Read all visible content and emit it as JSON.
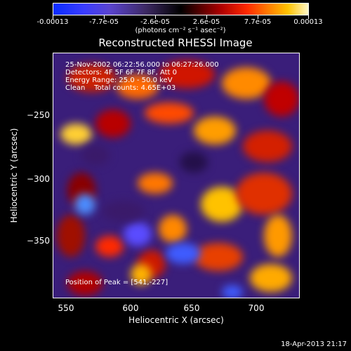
{
  "colorbar": {
    "ticks": [
      "-0.00013",
      "-7.7e-05",
      "-2.6e-05",
      "2.6e-05",
      "7.7e-05",
      "0.00013"
    ],
    "units": "(photons cm⁻² s⁻¹ asec⁻²)"
  },
  "chart_data": {
    "type": "heatmap",
    "title": "Reconstructed RHESSI Image",
    "xlabel": "Heliocentric X (arcsec)",
    "ylabel": "Heliocentric Y (arcsec)",
    "xlim": [
      545,
      735
    ],
    "ylim": [
      -395,
      -205
    ],
    "x_ticks": [
      "550",
      "600",
      "650",
      "700"
    ],
    "y_ticks": [
      "−250",
      "−300",
      "−350"
    ],
    "colormap_range": [
      -0.00013,
      0.00013
    ],
    "annotations": [
      "25-Nov-2002 06:22:56.000 to 06:27:26.000",
      "Detectors: 4F 5F 6F 7F 8F, Att 0",
      "Energy Range: 25.0 - 50.0 keV",
      "Clean    Total counts: 4.65E+03"
    ],
    "peak_label": "Position of Peak = [541,-227]"
  },
  "footer": {
    "timestamp": "18-Apr-2013 21:17"
  }
}
